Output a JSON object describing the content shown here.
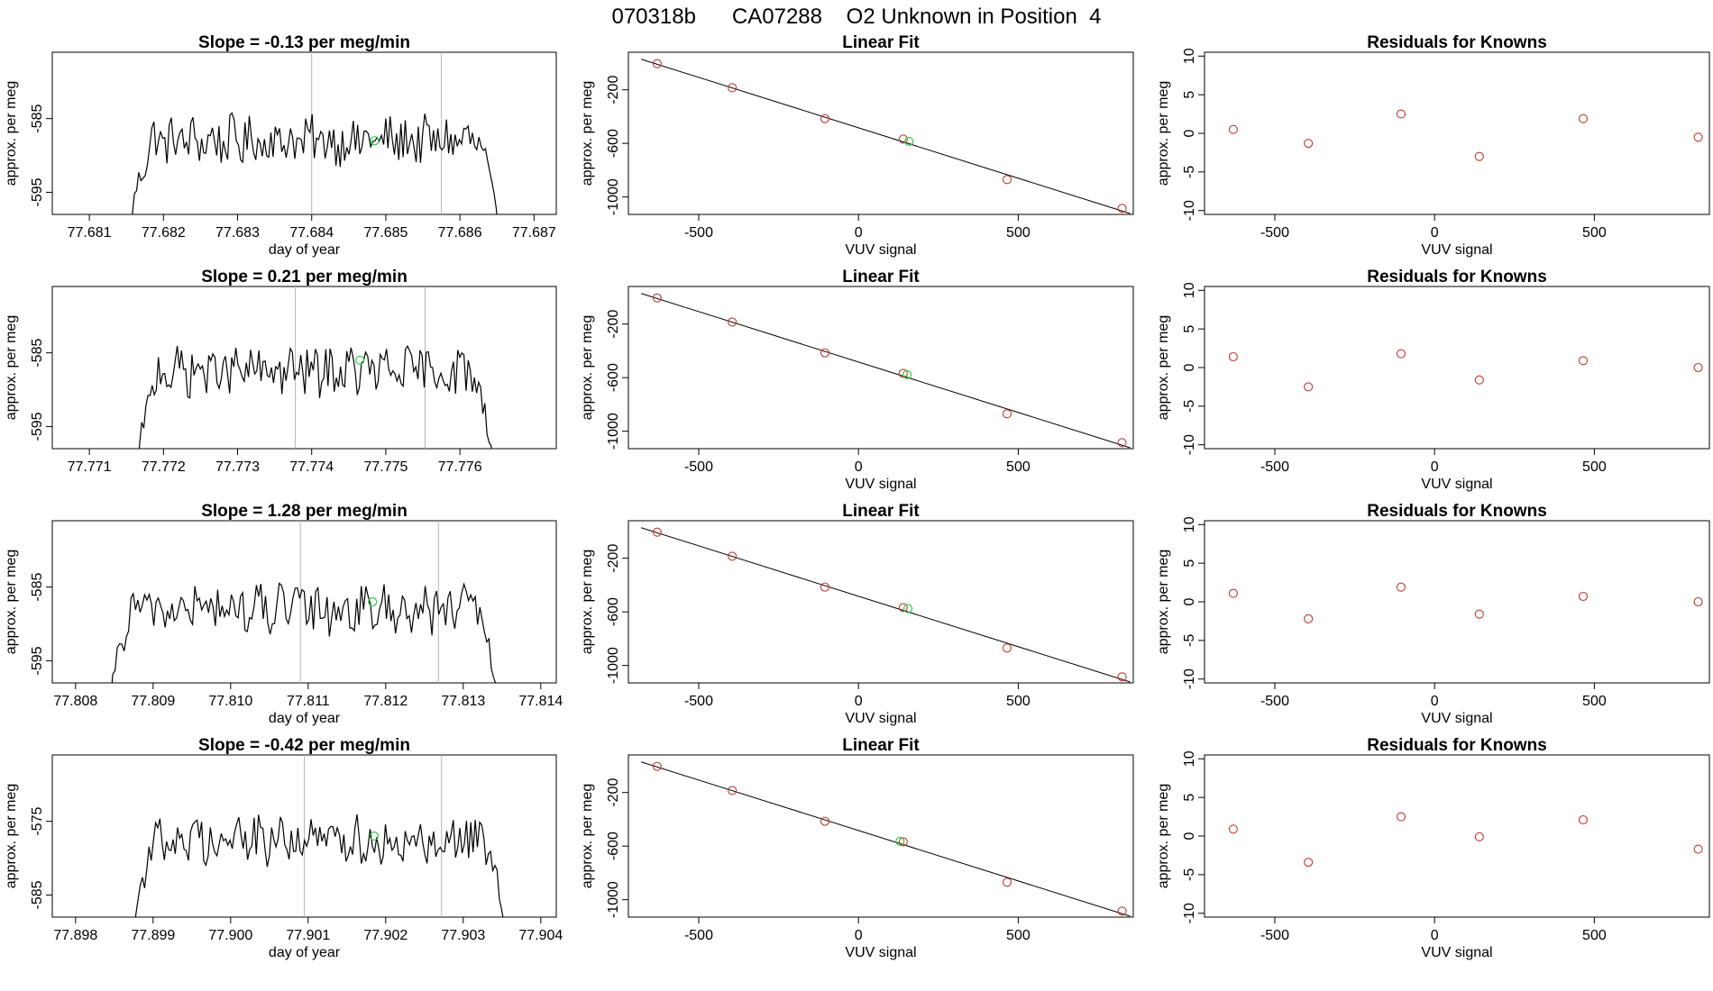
{
  "figure_title": "070318b      CA07288    O2 Unknown in Position  4",
  "chart_data": [
    {
      "type": "line",
      "row": 1,
      "kind": "timeseries",
      "title": "Slope =  -0.13  per meg/min",
      "xlabel": "day of year",
      "ylabel": "approx. per meg",
      "xlim": [
        77.6805,
        77.6873
      ],
      "ylim": [
        -598,
        -576
      ],
      "xticks": [
        77.681,
        77.682,
        77.683,
        77.684,
        77.685,
        77.686,
        77.687
      ],
      "xtick_labels": [
        "77.681",
        "77.682",
        "77.683",
        "77.684",
        "77.685",
        "77.686",
        "77.687"
      ],
      "yticks": [
        -585,
        -595
      ],
      "ytick_labels": [
        "-585",
        "-595"
      ],
      "vlines": [
        77.684,
        77.68575
      ],
      "t_start": 77.68155,
      "t_end": 77.68652,
      "baseline": -588,
      "marker": {
        "x": 77.68485,
        "y": -588
      }
    },
    {
      "type": "scatter",
      "row": 1,
      "kind": "linearfit",
      "title": "Linear Fit",
      "xlabel": "VUV signal",
      "ylabel": "approx. per meg",
      "xlim": [
        -720,
        860
      ],
      "ylim": [
        -1130,
        80
      ],
      "xticks": [
        -500,
        0,
        500
      ],
      "xtick_labels": [
        "-500",
        "0",
        "500"
      ],
      "yticks": [
        -200,
        -600,
        -1000
      ],
      "ytick_labels": [
        "-200",
        "-600",
        "-1000"
      ],
      "x": [
        -630,
        -395,
        -105,
        140,
        465,
        825
      ],
      "y": [
        -5,
        -185,
        -415,
        -568,
        -870,
        -1085
      ],
      "unknown": {
        "x": 158,
        "y": -585
      }
    },
    {
      "type": "scatter",
      "row": 1,
      "kind": "residuals",
      "title": "Residuals for Knowns",
      "xlabel": "VUV signal",
      "ylabel": "approx. per meg",
      "xlim": [
        -720,
        860
      ],
      "ylim": [
        -10.5,
        10.5
      ],
      "xticks": [
        -500,
        0,
        500
      ],
      "xtick_labels": [
        "-500",
        "0",
        "500"
      ],
      "yticks": [
        10,
        5,
        0,
        -5,
        -10
      ],
      "ytick_labels": [
        "10",
        "5",
        "0",
        "-5",
        "-10"
      ],
      "x": [
        -630,
        -395,
        -105,
        140,
        465,
        825
      ],
      "y": [
        0.5,
        -1.3,
        2.5,
        -3.0,
        1.9,
        -0.5
      ]
    },
    {
      "type": "line",
      "row": 2,
      "kind": "timeseries",
      "title": "Slope =  0.21  per meg/min",
      "xlabel": "",
      "ylabel": "approx. per meg",
      "xlim": [
        77.7705,
        77.7773
      ],
      "ylim": [
        -598,
        -576
      ],
      "xticks": [
        77.771,
        77.772,
        77.773,
        77.774,
        77.775,
        77.776
      ],
      "xtick_labels": [
        "77.771",
        "77.772",
        "77.773",
        "77.774",
        "77.775",
        "77.776"
      ],
      "yticks": [
        -585,
        -595
      ],
      "ytick_labels": [
        "-585",
        "-595"
      ],
      "vlines": [
        77.77378,
        77.77553
      ],
      "t_start": 77.77165,
      "t_end": 77.77645,
      "baseline": -587.5,
      "marker": {
        "x": 77.77465,
        "y": -586
      }
    },
    {
      "type": "scatter",
      "row": 2,
      "kind": "linearfit",
      "title": "Linear Fit",
      "xlabel": "VUV signal",
      "ylabel": "approx. per meg",
      "xlim": [
        -720,
        860
      ],
      "ylim": [
        -1130,
        80
      ],
      "xticks": [
        -500,
        0,
        500
      ],
      "xtick_labels": [
        "-500",
        "0",
        "500"
      ],
      "yticks": [
        -200,
        -600,
        -1000
      ],
      "ytick_labels": [
        "-200",
        "-600",
        "-1000"
      ],
      "x": [
        -630,
        -395,
        -105,
        140,
        465,
        825
      ],
      "y": [
        -5,
        -185,
        -415,
        -568,
        -870,
        -1085
      ],
      "unknown": {
        "x": 152,
        "y": -578
      }
    },
    {
      "type": "scatter",
      "row": 2,
      "kind": "residuals",
      "title": "Residuals for Knowns",
      "xlabel": "VUV signal",
      "ylabel": "approx. per meg",
      "xlim": [
        -720,
        860
      ],
      "ylim": [
        -10.5,
        10.5
      ],
      "xticks": [
        -500,
        0,
        500
      ],
      "xtick_labels": [
        "-500",
        "0",
        "500"
      ],
      "yticks": [
        10,
        5,
        0,
        -5,
        -10
      ],
      "ytick_labels": [
        "10",
        "5",
        "0",
        "-5",
        "-10"
      ],
      "x": [
        -630,
        -395,
        -105,
        140,
        465,
        825
      ],
      "y": [
        1.4,
        -2.5,
        1.8,
        -1.6,
        0.9,
        0.0
      ]
    },
    {
      "type": "line",
      "row": 3,
      "kind": "timeseries",
      "title": "Slope =  1.28  per meg/min",
      "xlabel": "day of year",
      "ylabel": "approx. per meg",
      "xlim": [
        77.8077,
        77.8142
      ],
      "ylim": [
        -598,
        -576
      ],
      "xticks": [
        77.808,
        77.809,
        77.81,
        77.811,
        77.812,
        77.813,
        77.814
      ],
      "xtick_labels": [
        "77.808",
        "77.809",
        "77.810",
        "77.811",
        "77.812",
        "77.813",
        "77.814"
      ],
      "yticks": [
        -585,
        -595
      ],
      "ytick_labels": [
        "-585",
        "-595"
      ],
      "vlines": [
        77.8109,
        77.81268
      ],
      "t_start": 77.80845,
      "t_end": 77.81345,
      "baseline": -588,
      "marker": {
        "x": 77.81183,
        "y": -587
      }
    },
    {
      "type": "scatter",
      "row": 3,
      "kind": "linearfit",
      "title": "Linear Fit",
      "xlabel": "VUV signal",
      "ylabel": "approx. per meg",
      "xlim": [
        -720,
        860
      ],
      "ylim": [
        -1130,
        80
      ],
      "xticks": [
        -500,
        0,
        500
      ],
      "xtick_labels": [
        "-500",
        "0",
        "500"
      ],
      "yticks": [
        -200,
        -600,
        -1000
      ],
      "ytick_labels": [
        "-200",
        "-600",
        "-1000"
      ],
      "x": [
        -630,
        -395,
        -105,
        140,
        465,
        825
      ],
      "y": [
        -5,
        -185,
        -415,
        -568,
        -870,
        -1085
      ],
      "unknown": {
        "x": 155,
        "y": -575
      }
    },
    {
      "type": "scatter",
      "row": 3,
      "kind": "residuals",
      "title": "Residuals for Knowns",
      "xlabel": "VUV signal",
      "ylabel": "approx. per meg",
      "xlim": [
        -720,
        860
      ],
      "ylim": [
        -10.5,
        10.5
      ],
      "xticks": [
        -500,
        0,
        500
      ],
      "xtick_labels": [
        "-500",
        "0",
        "500"
      ],
      "yticks": [
        10,
        5,
        0,
        -5,
        -10
      ],
      "ytick_labels": [
        "10",
        "5",
        "0",
        "-5",
        "-10"
      ],
      "x": [
        -630,
        -395,
        -105,
        140,
        465,
        825
      ],
      "y": [
        1.1,
        -2.2,
        1.9,
        -1.6,
        0.7,
        0.0
      ]
    },
    {
      "type": "line",
      "row": 4,
      "kind": "timeseries",
      "title": "Slope =  -0.42  per meg/min",
      "xlabel": "day of year",
      "ylabel": "approx. per meg",
      "xlim": [
        77.8977,
        77.9042
      ],
      "ylim": [
        -588,
        -566
      ],
      "xticks": [
        77.898,
        77.899,
        77.9,
        77.901,
        77.902,
        77.903,
        77.904
      ],
      "xtick_labels": [
        "77.898",
        "77.899",
        "77.900",
        "77.901",
        "77.902",
        "77.903",
        "77.904"
      ],
      "yticks": [
        -575,
        -585
      ],
      "ytick_labels": [
        "-575",
        "-585"
      ],
      "vlines": [
        77.90095,
        77.90272
      ],
      "t_start": 77.89875,
      "t_end": 77.90355,
      "baseline": -577.5,
      "marker": {
        "x": 77.90185,
        "y": -577
      }
    },
    {
      "type": "scatter",
      "row": 4,
      "kind": "linearfit",
      "title": "Linear Fit",
      "xlabel": "VUV signal",
      "ylabel": "approx. per meg",
      "xlim": [
        -720,
        860
      ],
      "ylim": [
        -1130,
        80
      ],
      "xticks": [
        -500,
        0,
        500
      ],
      "xtick_labels": [
        "-500",
        "0",
        "500"
      ],
      "yticks": [
        -200,
        -600,
        -1000
      ],
      "ytick_labels": [
        "-200",
        "-600",
        "-1000"
      ],
      "x": [
        -630,
        -395,
        -105,
        140,
        465,
        825
      ],
      "y": [
        -5,
        -185,
        -415,
        -568,
        -870,
        -1085
      ],
      "unknown": {
        "x": 130,
        "y": -565
      }
    },
    {
      "type": "scatter",
      "row": 4,
      "kind": "residuals",
      "title": "Residuals for Knowns",
      "xlabel": "VUV signal",
      "ylabel": "approx. per meg",
      "xlim": [
        -720,
        860
      ],
      "ylim": [
        -10.5,
        10.5
      ],
      "xticks": [
        -500,
        0,
        500
      ],
      "xtick_labels": [
        "-500",
        "0",
        "500"
      ],
      "yticks": [
        10,
        5,
        0,
        -5,
        -10
      ],
      "ytick_labels": [
        "10",
        "5",
        "0",
        "-5",
        "-10"
      ],
      "x": [
        -630,
        -395,
        -105,
        140,
        465,
        825
      ],
      "y": [
        0.9,
        -3.4,
        2.5,
        -0.1,
        2.1,
        -1.7
      ]
    }
  ],
  "colors": {
    "axis": "#000000",
    "line": "#000000",
    "known_point": "#c0392b",
    "unknown_point": "#2ecc40",
    "vline": "#b5b5b5"
  }
}
